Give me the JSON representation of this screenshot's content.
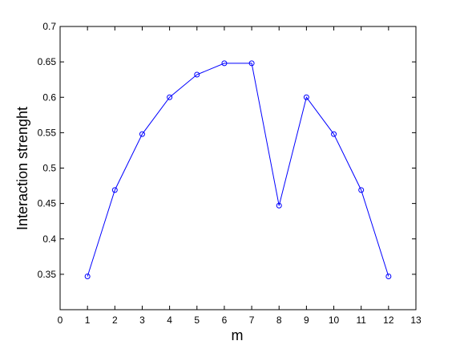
{
  "chart_data": {
    "type": "line",
    "x_label": "m",
    "y_label": "Interaction strenght",
    "x": [
      1,
      2,
      3,
      4,
      5,
      6,
      7,
      8,
      9,
      10,
      11,
      12
    ],
    "values": [
      0.347,
      0.469,
      0.548,
      0.6,
      0.632,
      0.648,
      0.648,
      0.447,
      0.6,
      0.548,
      0.469,
      0.347
    ],
    "color": "#0000ff",
    "xlim": [
      0,
      13
    ],
    "xticks": [
      0,
      1,
      2,
      3,
      4,
      5,
      6,
      7,
      8,
      9,
      10,
      11,
      12,
      13
    ],
    "ylim": [
      0.3,
      0.7
    ],
    "yticks": [
      0.35,
      0.4,
      0.45,
      0.5,
      0.55,
      0.6,
      0.65,
      0.7
    ]
  }
}
